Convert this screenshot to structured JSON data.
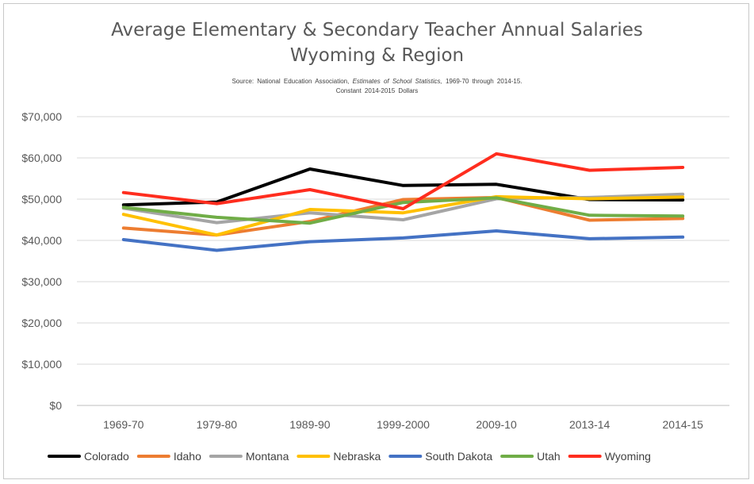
{
  "chart_data": {
    "type": "line",
    "title_line1": "Average Elementary & Secondary Teacher Annual Salaries",
    "title_line2": "Wyoming & Region",
    "source_label": "Source:",
    "source_org": "National Education Association,",
    "source_pub": "Estimates of School Statistics,",
    "source_range": "1969-70 through 2014-15.",
    "source_note": "Constant 2014-2015 Dollars",
    "categories": [
      "1969-70",
      "1979-80",
      "1989-90",
      "1999-2000",
      "2009-10",
      "2013-14",
      "2014-15"
    ],
    "y_ticks": [
      "$0",
      "$10,000",
      "$20,000",
      "$30,000",
      "$40,000",
      "$50,000",
      "$60,000",
      "$70,000"
    ],
    "ylim": [
      0,
      70000
    ],
    "grid": true,
    "legend_position": "bottom",
    "series": [
      {
        "name": "Colorado",
        "color": "#000000",
        "values": [
          48600,
          49300,
          57300,
          53300,
          53600,
          49900,
          49800
        ]
      },
      {
        "name": "Idaho",
        "color": "#ed7d31",
        "values": [
          43000,
          41300,
          44600,
          49900,
          50400,
          44900,
          45300
        ]
      },
      {
        "name": "Montana",
        "color": "#a5a5a5",
        "values": [
          47800,
          44300,
          46700,
          45000,
          50100,
          50400,
          51200
        ]
      },
      {
        "name": "Nebraska",
        "color": "#ffc000",
        "values": [
          46300,
          41300,
          47500,
          46700,
          50600,
          50100,
          50500
        ]
      },
      {
        "name": "South Dakota",
        "color": "#4472c4",
        "values": [
          40200,
          37600,
          39700,
          40600,
          42300,
          40400,
          40800
        ]
      },
      {
        "name": "Utah",
        "color": "#70ad47",
        "values": [
          48000,
          45600,
          44200,
          49200,
          50300,
          46100,
          45900
        ]
      },
      {
        "name": "Wyoming",
        "color": "#ff2d1e",
        "values": [
          51600,
          48900,
          52300,
          47700,
          61000,
          57000,
          57700
        ]
      }
    ]
  }
}
